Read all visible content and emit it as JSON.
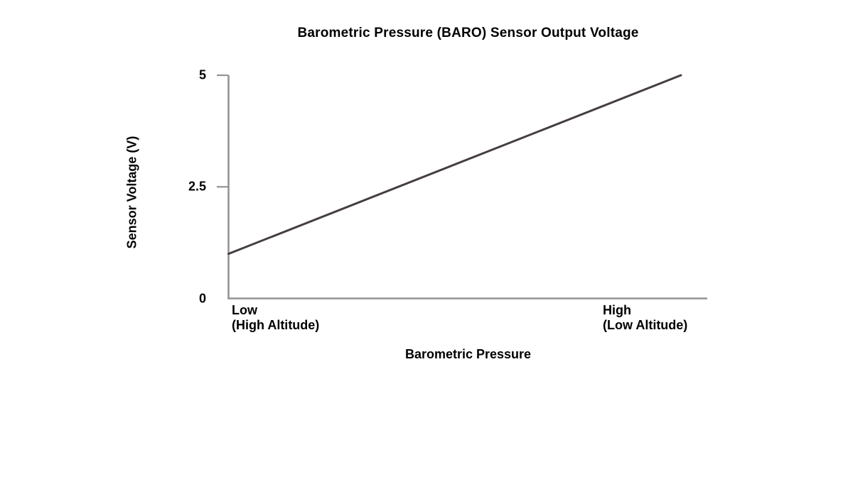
{
  "chart_data": {
    "type": "line",
    "title": "Barometric Pressure (BARO) Sensor Output Voltage",
    "xlabel": "Barometric Pressure",
    "ylabel": "Sensor Voltage (V)",
    "x_axis": {
      "left_label_line1": "Low",
      "left_label_line2": "(High Altitude)",
      "right_label_line1": "High",
      "right_label_line2": "(Low Altitude)"
    },
    "ylim": [
      0,
      5
    ],
    "yticks": [
      {
        "value": 0,
        "label": "0",
        "has_tick_mark": false
      },
      {
        "value": 2.5,
        "label": "2.5",
        "has_tick_mark": true
      },
      {
        "value": 5,
        "label": "5",
        "has_tick_mark": true
      }
    ],
    "grid": false,
    "legend": "none",
    "series": [
      {
        "name": "BARO sensor output voltage vs barometric pressure",
        "points": [
          {
            "x": "Low (High Altitude)",
            "x_fraction": 0.0,
            "y": 1.0
          },
          {
            "x": "High (Low Altitude)",
            "x_fraction": 0.945,
            "y": 5.0
          }
        ]
      }
    ],
    "colors": {
      "axis": "#949494",
      "line": "#463e3e",
      "text": "#000000",
      "background": "#ffffff"
    }
  }
}
